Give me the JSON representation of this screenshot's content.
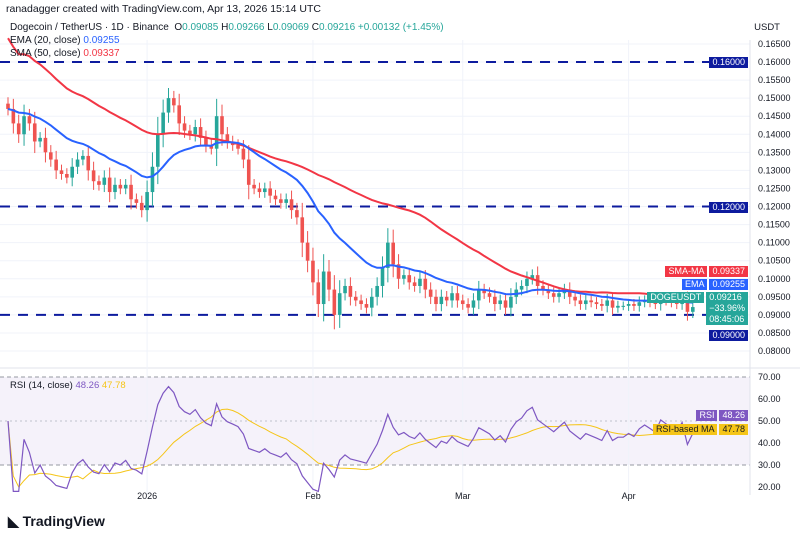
{
  "header": {
    "credit": "ranadagger created with TradingView.com, Apr 13, 2026 15:14 UTC",
    "currency": "USDT"
  },
  "symbol": {
    "name": "Dogecoin / TetherUS · 1D · Binance",
    "o_label": "O",
    "o": "0.09085",
    "h_label": "H",
    "h": "0.09266",
    "l_label": "L",
    "l": "0.09069",
    "c_label": "C",
    "c": "0.09216",
    "change": "+0.00132 (+1.45%)"
  },
  "indicators": {
    "ema_label": "EMA (20, close)",
    "ema_value": "0.09255",
    "sma_label": "SMA (50, close)",
    "sma_value": "0.09337",
    "rsi_label": "RSI (14, close)",
    "rsi_value": "48.26",
    "rsi_ma_value": "47.78"
  },
  "tags": {
    "sma_name": "SMA-MA",
    "sma": "0.09337",
    "ema_name": "EMA",
    "ema": "0.09255",
    "sym_name": "DOGEUSDT",
    "price": "0.09216",
    "pct": "−33.96%",
    "countdown": "08:45:06",
    "support": "0.09000",
    "resistance": "0.16000",
    "mid": "0.12000",
    "rsi_name": "RSI",
    "rsi": "48.26",
    "rsi_ma_name": "RSI-based MA",
    "rsi_ma": "47.78"
  },
  "colors": {
    "up": "#26a69a",
    "down": "#ef5350",
    "ema": "#2962ff",
    "sma": "#f23645",
    "rsi": "#7e57c2",
    "rsi_ma": "#f5c518",
    "level": "#0d1b9e"
  },
  "chart_data": [
    {
      "type": "candlestick",
      "title": "Dogecoin / TetherUS · 1D · Binance",
      "start_date": "2025-12-06",
      "end_date": "2026-04-13",
      "ylim": [
        0.08,
        0.165
      ],
      "yticks": [
        "0.16500",
        "0.16000",
        "0.15500",
        "0.15000",
        "0.14500",
        "0.14000",
        "0.13500",
        "0.13000",
        "0.12500",
        "0.12000",
        "0.11500",
        "0.11000",
        "0.10500",
        "0.10000",
        "0.09500",
        "0.09000",
        "0.08500",
        "0.08000"
      ],
      "xticks": [
        "2026",
        "Feb",
        "Mar",
        "Apr"
      ],
      "horizontal_levels": [
        0.16,
        0.12,
        0.09
      ],
      "closes": [
        0.147,
        0.143,
        0.14,
        0.145,
        0.143,
        0.138,
        0.139,
        0.135,
        0.133,
        0.13,
        0.129,
        0.128,
        0.131,
        0.133,
        0.134,
        0.13,
        0.127,
        0.126,
        0.128,
        0.124,
        0.126,
        0.125,
        0.126,
        0.122,
        0.121,
        0.119,
        0.124,
        0.131,
        0.14,
        0.146,
        0.15,
        0.148,
        0.143,
        0.141,
        0.14,
        0.142,
        0.139,
        0.137,
        0.136,
        0.145,
        0.14,
        0.138,
        0.137,
        0.136,
        0.133,
        0.126,
        0.125,
        0.124,
        0.125,
        0.123,
        0.122,
        0.121,
        0.122,
        0.119,
        0.117,
        0.11,
        0.105,
        0.099,
        0.093,
        0.102,
        0.097,
        0.09,
        0.096,
        0.098,
        0.095,
        0.094,
        0.093,
        0.092,
        0.095,
        0.098,
        0.103,
        0.11,
        0.104,
        0.1,
        0.101,
        0.099,
        0.098,
        0.1,
        0.097,
        0.095,
        0.093,
        0.095,
        0.094,
        0.096,
        0.094,
        0.093,
        0.092,
        0.094,
        0.097,
        0.096,
        0.095,
        0.093,
        0.094,
        0.092,
        0.095,
        0.097,
        0.098,
        0.1,
        0.101,
        0.098,
        0.097,
        0.096,
        0.095,
        0.096,
        0.097,
        0.095,
        0.094,
        0.093,
        0.094,
        0.0935,
        0.093,
        0.0925,
        0.094,
        0.092,
        0.0925,
        0.0925,
        0.093,
        0.0925,
        0.0935,
        0.094,
        0.0935,
        0.093,
        0.0945,
        0.094,
        0.0935,
        0.093,
        0.094,
        0.09085,
        0.09216
      ]
    },
    {
      "type": "line",
      "title": "RSI (14, close)",
      "ylim": [
        20,
        70
      ],
      "yticks": [
        "70.00",
        "60.00",
        "50.00",
        "40.00",
        "30.00",
        "20.00"
      ],
      "bands": [
        30,
        70
      ]
    }
  ],
  "footer": {
    "logo": "TradingView"
  }
}
